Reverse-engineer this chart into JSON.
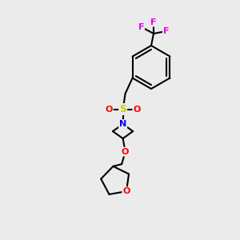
{
  "bg_color": "#ebebeb",
  "atom_colors": {
    "F": "#ee00ee",
    "S": "#cccc00",
    "O": "#ff0000",
    "N": "#0000ff",
    "C": "#000000"
  },
  "bond_color": "#000000",
  "bond_width": 1.5
}
